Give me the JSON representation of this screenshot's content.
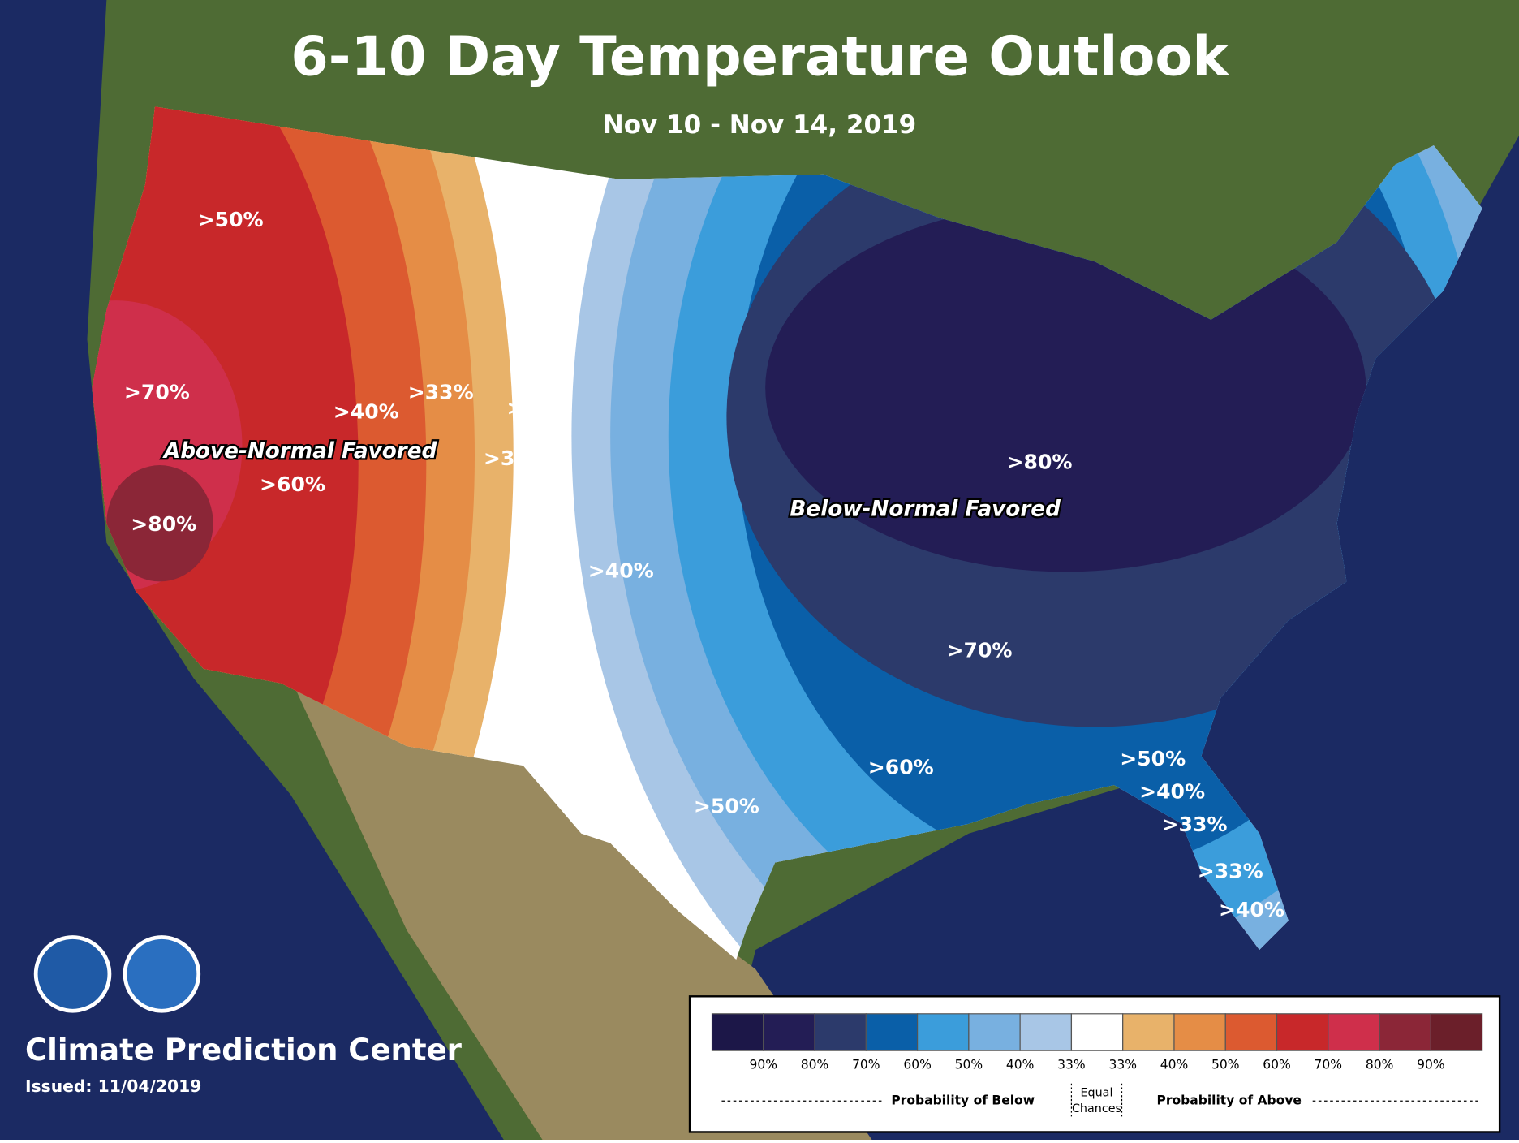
{
  "title": "6-10 Day Temperature Outlook",
  "subtitle": "Nov 10 - Nov 14, 2019",
  "annotations": [
    "Above-Normal Favored",
    "Below-Normal Favored"
  ],
  "map_labels": [
    ">50%",
    ">70%",
    ">40%",
    ">33%",
    ">33%",
    ">36%",
    ">60%",
    ">80%",
    ">40%",
    ">80%",
    ">70%",
    ">60%",
    ">50%",
    ">50%",
    ">40%",
    ">33%",
    ">33%",
    ">40%"
  ],
  "legend": {
    "colors": [
      "#1c1748",
      "#231d55",
      "#2c3a6b",
      "#0a5fa8",
      "#3b9ddb",
      "#78b0e0",
      "#a8c6e6",
      "#ffffff",
      "#e8b26a",
      "#e58d46",
      "#dc5a30",
      "#c8282a",
      "#cf2f4b",
      "#8b2637",
      "#6b1f2a"
    ],
    "below_labels": [
      "90%",
      "80%",
      "70%",
      "60%",
      "50%",
      "40%",
      "33%"
    ],
    "above_labels": [
      "33%",
      "40%",
      "50%",
      "60%",
      "70%",
      "80%",
      "90%"
    ],
    "below_title": "Probability of Below",
    "equal_title": [
      "Equal",
      "Chances"
    ],
    "above_title": "Probability of Above"
  },
  "footer": {
    "agency": "Climate Prediction Center",
    "issued": "Issued: 11/04/2019"
  }
}
